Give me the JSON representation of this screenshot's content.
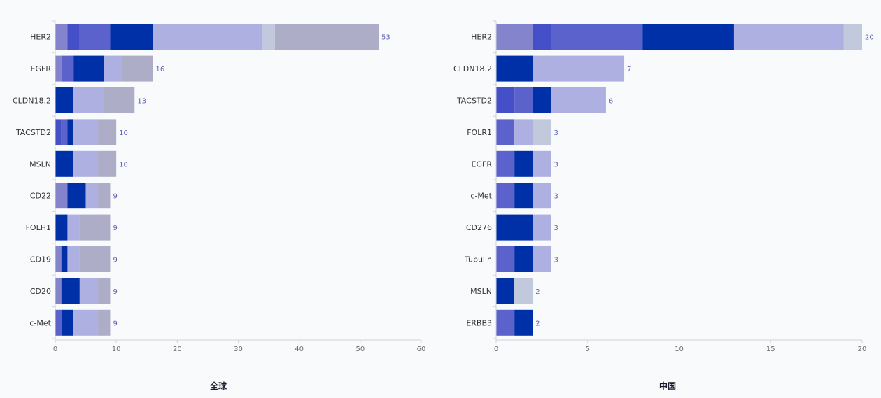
{
  "colors": {
    "axis": "#cfd3de",
    "value_label": "#5b63b7",
    "palette": [
      "#8484cc",
      "#444fc8",
      "#5c62cc",
      "#0030a8",
      "#adb0e0",
      "#c3c9dc",
      "#adadc8"
    ]
  },
  "chart_data": [
    {
      "type": "bar",
      "orientation": "horizontal",
      "stacked": true,
      "title": "全球",
      "categories": [
        "HER2",
        "EGFR",
        "CLDN18.2",
        "TACSTD2",
        "MSLN",
        "CD22",
        "FOLH1",
        "CD19",
        "CD20",
        "c-Met"
      ],
      "totals": [
        53,
        16,
        13,
        10,
        10,
        9,
        9,
        9,
        9,
        9
      ],
      "segments": [
        [
          [
            0,
            2
          ],
          [
            1,
            2
          ],
          [
            2,
            5
          ],
          [
            3,
            7
          ],
          [
            4,
            18
          ],
          [
            5,
            2
          ],
          [
            6,
            17
          ]
        ],
        [
          [
            0,
            1
          ],
          [
            2,
            2
          ],
          [
            3,
            5
          ],
          [
            4,
            3
          ],
          [
            6,
            5
          ]
        ],
        [
          [
            3,
            3
          ],
          [
            4,
            5
          ],
          [
            6,
            5
          ]
        ],
        [
          [
            1,
            1
          ],
          [
            2,
            1
          ],
          [
            3,
            1
          ],
          [
            4,
            4
          ],
          [
            6,
            3
          ]
        ],
        [
          [
            3,
            3
          ],
          [
            4,
            4
          ],
          [
            6,
            3
          ]
        ],
        [
          [
            0,
            2
          ],
          [
            3,
            3
          ],
          [
            4,
            2
          ],
          [
            6,
            2
          ]
        ],
        [
          [
            3,
            2
          ],
          [
            4,
            2
          ],
          [
            6,
            5
          ]
        ],
        [
          [
            0,
            1
          ],
          [
            3,
            1
          ],
          [
            4,
            2
          ],
          [
            6,
            5
          ]
        ],
        [
          [
            0,
            1
          ],
          [
            3,
            3
          ],
          [
            4,
            3
          ],
          [
            6,
            2
          ]
        ],
        [
          [
            2,
            1
          ],
          [
            3,
            2
          ],
          [
            4,
            4
          ],
          [
            6,
            2
          ]
        ]
      ],
      "xlim": [
        0,
        60
      ],
      "xticks": [
        0,
        10,
        20,
        30,
        40,
        50,
        60
      ]
    },
    {
      "type": "bar",
      "orientation": "horizontal",
      "stacked": true,
      "title": "中国",
      "categories": [
        "HER2",
        "CLDN18.2",
        "TACSTD2",
        "FOLR1",
        "EGFR",
        "c-Met",
        "CD276",
        "Tubulin",
        "MSLN",
        "ERBB3"
      ],
      "totals": [
        20,
        7,
        6,
        3,
        3,
        3,
        3,
        3,
        2,
        2
      ],
      "segments": [
        [
          [
            0,
            2
          ],
          [
            1,
            1
          ],
          [
            2,
            5
          ],
          [
            3,
            5
          ],
          [
            4,
            6
          ],
          [
            5,
            1
          ]
        ],
        [
          [
            3,
            2
          ],
          [
            4,
            5
          ]
        ],
        [
          [
            1,
            1
          ],
          [
            2,
            1
          ],
          [
            3,
            1
          ],
          [
            4,
            3
          ]
        ],
        [
          [
            2,
            1
          ],
          [
            4,
            1
          ],
          [
            5,
            1
          ]
        ],
        [
          [
            2,
            1
          ],
          [
            3,
            1
          ],
          [
            4,
            1
          ]
        ],
        [
          [
            2,
            1
          ],
          [
            3,
            1
          ],
          [
            4,
            1
          ]
        ],
        [
          [
            3,
            2
          ],
          [
            4,
            1
          ]
        ],
        [
          [
            2,
            1
          ],
          [
            3,
            1
          ],
          [
            4,
            1
          ]
        ],
        [
          [
            3,
            1
          ],
          [
            5,
            1
          ]
        ],
        [
          [
            2,
            1
          ],
          [
            3,
            1
          ]
        ]
      ],
      "xlim": [
        0,
        20
      ],
      "xticks": [
        0,
        5,
        10,
        15,
        20
      ]
    }
  ]
}
